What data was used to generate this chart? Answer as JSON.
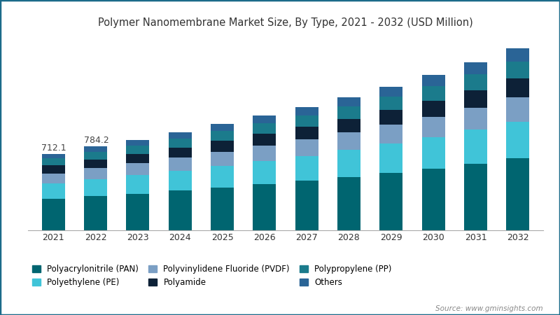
{
  "title": "Polymer Nanomembrane Market Size, By Type, 2021 - 2032 (USD Million)",
  "years": [
    2021,
    2022,
    2023,
    2024,
    2025,
    2026,
    2027,
    2028,
    2029,
    2030,
    2031,
    2032
  ],
  "annotations": {
    "2021": "712.1",
    "2022": "784.2"
  },
  "series_order": [
    "Polyacrylonitrile (PAN)",
    "Polyethylene (PE)",
    "Polyvinylidene Fluoride (PVDF)",
    "Polyamide",
    "Polypropylene (PP)",
    "Others"
  ],
  "series": {
    "Polyacrylonitrile (PAN)": {
      "color": "#006570",
      "values": [
        290,
        320,
        340,
        370,
        400,
        430,
        460,
        495,
        535,
        575,
        620,
        670
      ]
    },
    "Polyethylene (PE)": {
      "color": "#40C4D8",
      "values": [
        145,
        158,
        172,
        187,
        202,
        218,
        235,
        253,
        273,
        295,
        318,
        344
      ]
    },
    "Polyvinylidene Fluoride (PVDF)": {
      "color": "#7B9FC4",
      "values": [
        95,
        103,
        112,
        121,
        131,
        141,
        152,
        164,
        177,
        192,
        208,
        226
      ]
    },
    "Polyamide": {
      "color": "#0D2137",
      "values": [
        75,
        81,
        88,
        95,
        103,
        111,
        120,
        129,
        140,
        151,
        164,
        178
      ]
    },
    "Polypropylene (PP)": {
      "color": "#1B7B8C",
      "values": [
        65,
        71,
        77,
        84,
        91,
        98,
        106,
        115,
        124,
        134,
        146,
        159
      ]
    },
    "Others": {
      "color": "#2A6496",
      "values": [
        42,
        51,
        56,
        61,
        67,
        73,
        79,
        86,
        94,
        103,
        112,
        123
      ]
    }
  },
  "background_color": "#ffffff",
  "source_text": "Source: www.gminsights.com",
  "border_color": "#1B6B8A",
  "title_color": "#333333",
  "legend_fontsize": 8.5,
  "title_fontsize": 10.5,
  "bar_width": 0.55,
  "ylim_max": 1800
}
